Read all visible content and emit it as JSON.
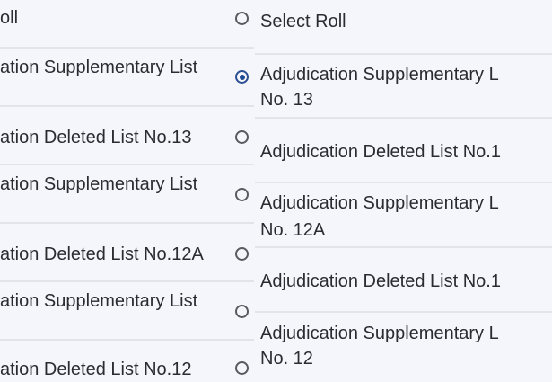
{
  "left_list": {
    "items": [
      {
        "label": "oll"
      },
      {
        "label": "ation Supplementary List"
      },
      {
        "label": "ation Deleted List No.13"
      },
      {
        "label": "ation Supplementary List"
      },
      {
        "label": "ation Deleted List No.12A"
      },
      {
        "label": "ation Supplementary List"
      },
      {
        "label": "ation Deleted List No.12"
      }
    ]
  },
  "right_list": {
    "selected_index": 1,
    "items": [
      {
        "label": "Select Roll",
        "selected": false
      },
      {
        "label": "Adjudication Supplementary L",
        "label2": "No. 13",
        "selected": true
      },
      {
        "label": "Adjudication Deleted List No.1",
        "selected": false
      },
      {
        "label": "Adjudication Supplementary L",
        "label2": "No. 12A",
        "selected": false
      },
      {
        "label": "Adjudication Deleted List No.1",
        "selected": false
      },
      {
        "label": "Adjudication Supplementary L",
        "label2": "No. 12",
        "selected": false
      }
    ]
  },
  "colors": {
    "background": "#f5f6fb",
    "text": "#2c2c30",
    "radio_selected": "#1f4a94",
    "divider": "#e3e4ea"
  }
}
